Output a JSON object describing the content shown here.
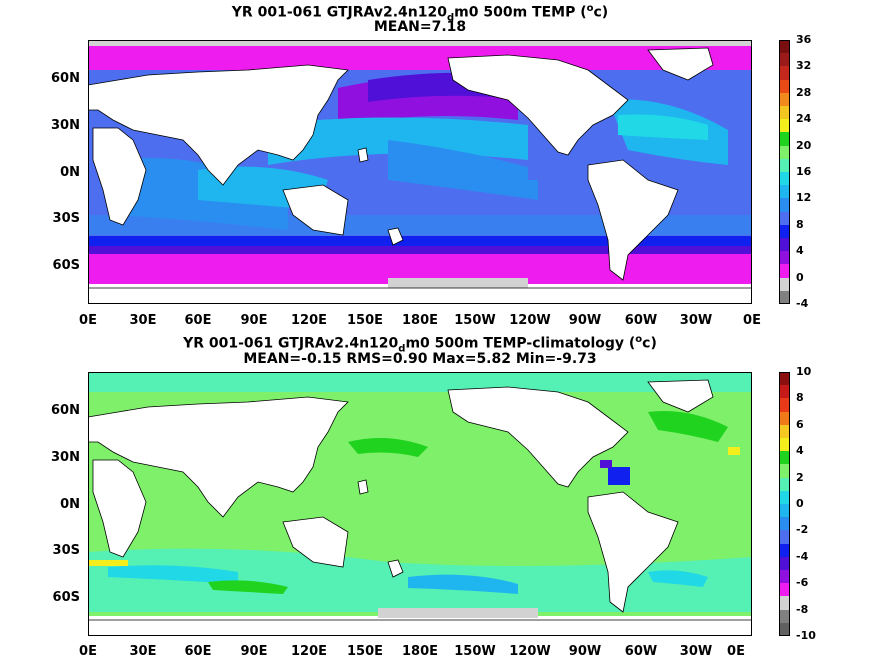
{
  "panels": [
    {
      "title_line1": {
        "pre": "YR 001-061 GTJRAv2.4n120",
        "sub": "d",
        "mid": "m0 500m TEMP (",
        "sup": "o",
        "post": "c)"
      },
      "title_line2": "MEAN=7.18",
      "colorbar": {
        "labels": [
          "36",
          "32",
          "28",
          "24",
          "20",
          "16",
          "12",
          "8",
          "4",
          "0",
          "-4"
        ],
        "colors": [
          "#7a0f0f",
          "#9b1b1b",
          "#c4271c",
          "#ea4a16",
          "#f08a1e",
          "#f3c622",
          "#f5ee1d",
          "#1fd31f",
          "#7ff06a",
          "#55f0b3",
          "#20d8e6",
          "#1fb6ef",
          "#2a8ef0",
          "#4e6ef0",
          "#1020ee",
          "#5010d8",
          "#9010e0",
          "#ef1cef",
          "#d2d2d2",
          "#808080"
        ]
      },
      "ylabels": [
        "60N",
        "30N",
        "0N",
        "30S",
        "60S"
      ],
      "xlabels": [
        "0E",
        "30E",
        "60E",
        "90E",
        "120E",
        "150E",
        "180E",
        "150W",
        "120W",
        "90W",
        "60W",
        "30W",
        "0E"
      ]
    },
    {
      "title_line1": {
        "pre": "YR 001-061 GTJRAv2.4n120",
        "sub": "d",
        "mid": "m0 500m TEMP-climatology (",
        "sup": "o",
        "post": "c)"
      },
      "title_line2": "MEAN=-0.15   RMS=0.90   Max=5.82   Min=-9.73",
      "colorbar": {
        "labels": [
          "10",
          "8",
          "6",
          "4",
          "2",
          "0",
          "-2",
          "-4",
          "-6",
          "-8",
          "-10"
        ],
        "colors": [
          "#8a1010",
          "#c61a1a",
          "#e83a18",
          "#f07a1a",
          "#f5c822",
          "#f5ee1d",
          "#1fd31f",
          "#7ff06a",
          "#55f0b3",
          "#20d8e6",
          "#1fb6ef",
          "#2a8ef0",
          "#4e6ef0",
          "#1020ee",
          "#5010d8",
          "#9010e0",
          "#ef1cef",
          "#d2d2d2",
          "#808080",
          "#606060"
        ]
      },
      "ylabels": [
        "60N",
        "30N",
        "0N",
        "30S",
        "60S"
      ],
      "xlabels": [
        "0E",
        "30E",
        "60E",
        "90E",
        "120E",
        "150E",
        "180E",
        "150W",
        "120W",
        "90W",
        "60W",
        "30W",
        "0E"
      ]
    }
  ]
}
